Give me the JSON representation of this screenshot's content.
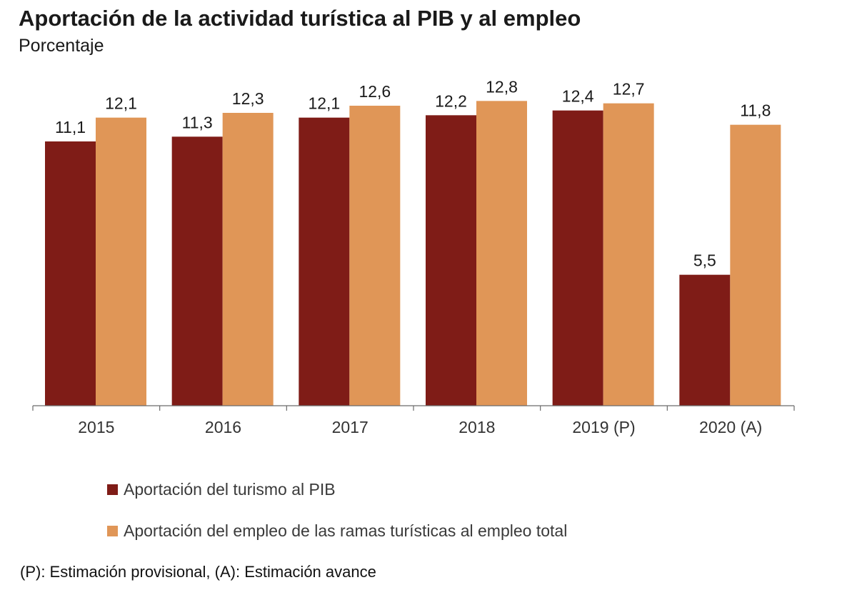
{
  "chart_data": {
    "type": "bar",
    "title": "Aportación de la actividad turística al PIB y al empleo",
    "subtitle": "Porcentaje",
    "categories": [
      "2015",
      "2016",
      "2017",
      "2018",
      "2019 (P)",
      "2020 (A)"
    ],
    "series": [
      {
        "name": "Aportación del turismo al PIB",
        "values": [
          11.1,
          11.3,
          12.1,
          12.2,
          12.4,
          5.5
        ],
        "labels": [
          "11,1",
          "11,3",
          "12,1",
          "12,2",
          "12,4",
          "5,5"
        ],
        "color": "#7f1c17"
      },
      {
        "name": "Aportación del empleo de las ramas turísticas al empleo total",
        "values": [
          12.1,
          12.3,
          12.6,
          12.8,
          12.7,
          11.8
        ],
        "labels": [
          "12,1",
          "12,3",
          "12,6",
          "12,8",
          "12,7",
          "11,8"
        ],
        "color": "#e09657"
      }
    ],
    "ylim": [
      0,
      15
    ],
    "grid": false,
    "legend_position": "bottom-left",
    "footnote": "(P): Estimación provisional, (A): Estimación avance"
  }
}
